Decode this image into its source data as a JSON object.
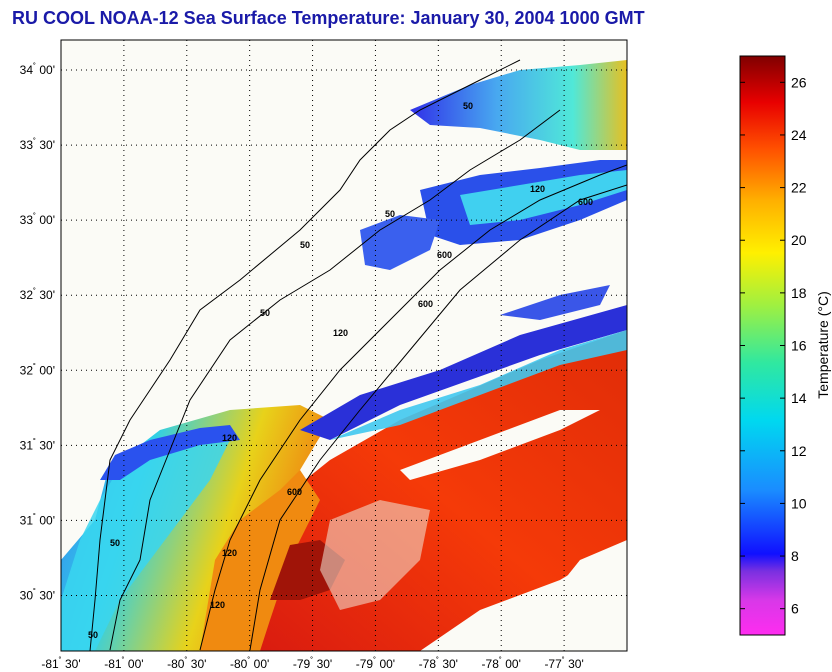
{
  "title": "RU COOL  NOAA-12  Sea Surface Temperature:  January 30, 2004 1000 GMT",
  "map": {
    "lat_ticks": [
      {
        "value": 34.0,
        "deg": "34",
        "min": "00'"
      },
      {
        "value": 33.5,
        "deg": "33",
        "min": "30'"
      },
      {
        "value": 33.0,
        "deg": "33",
        "min": "00'"
      },
      {
        "value": 32.5,
        "deg": "32",
        "min": "30'"
      },
      {
        "value": 32.0,
        "deg": "32",
        "min": "00'"
      },
      {
        "value": 31.5,
        "deg": "31",
        "min": "30'"
      },
      {
        "value": 31.0,
        "deg": "31",
        "min": "00'"
      },
      {
        "value": 30.5,
        "deg": "30",
        "min": "30'"
      }
    ],
    "lon_ticks": [
      {
        "value": -81.5,
        "deg": "-81",
        "min": "30'"
      },
      {
        "value": -81.0,
        "deg": "-81",
        "min": "00'"
      },
      {
        "value": -80.5,
        "deg": "-80",
        "min": "30'"
      },
      {
        "value": -80.0,
        "deg": "-80",
        "min": "00'"
      },
      {
        "value": -79.5,
        "deg": "-79",
        "min": "30'"
      },
      {
        "value": -79.0,
        "deg": "-79",
        "min": "00'"
      },
      {
        "value": -78.5,
        "deg": "-78",
        "min": "30'"
      },
      {
        "value": -78.0,
        "deg": "-78",
        "min": "00'"
      },
      {
        "value": -77.5,
        "deg": "-77",
        "min": "30'"
      }
    ],
    "lat_range": [
      30.13,
      34.2
    ],
    "lon_range": [
      -81.5,
      -77.0
    ],
    "isobath_labels": [
      "50",
      "50",
      "50",
      "50",
      "120",
      "120",
      "120",
      "120",
      "600",
      "600",
      "600",
      "600",
      "50",
      "120",
      "50"
    ],
    "grid": true
  },
  "colorbar": {
    "title": "Temperature (°C)",
    "ticks": [
      "26",
      "24",
      "22",
      "20",
      "18",
      "16",
      "14",
      "12",
      "10",
      "8",
      "6"
    ],
    "range": [
      5,
      27
    ]
  }
}
